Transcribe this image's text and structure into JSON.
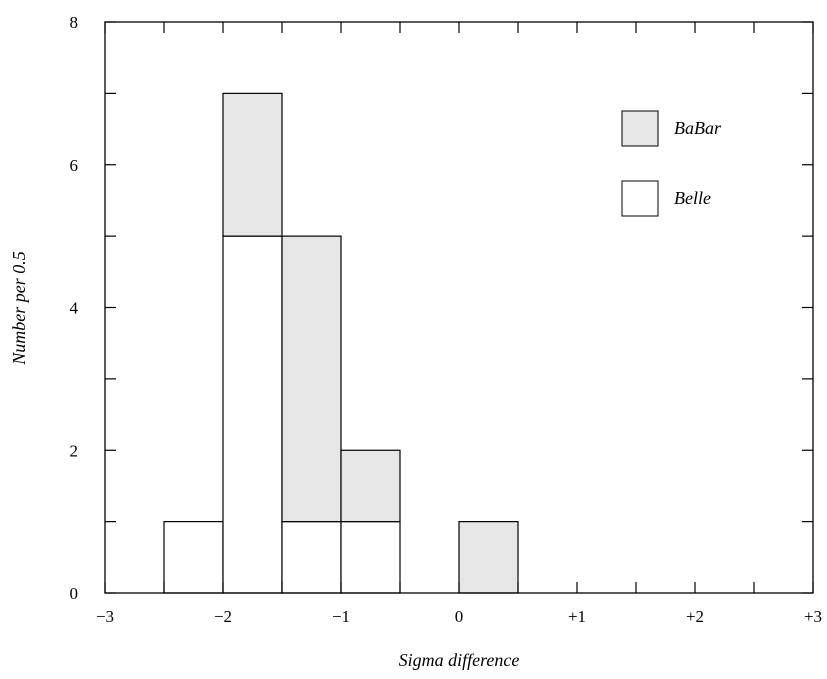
{
  "chart_data": {
    "type": "bar",
    "subtype": "stacked-histogram",
    "xlabel": "Sigma difference",
    "ylabel": "Number per 0.5",
    "xlim": [
      -3,
      3
    ],
    "ylim": [
      0,
      8
    ],
    "bin_width": 0.5,
    "x_ticks": [
      {
        "value": -3,
        "label": "−3"
      },
      {
        "value": -2,
        "label": "−2"
      },
      {
        "value": -1,
        "label": "−1"
      },
      {
        "value": 0,
        "label": "0"
      },
      {
        "value": 1,
        "label": "+1"
      },
      {
        "value": 2,
        "label": "+2"
      },
      {
        "value": 3,
        "label": "+3"
      }
    ],
    "y_ticks": [
      {
        "value": 0,
        "label": "0"
      },
      {
        "value": 2,
        "label": "2"
      },
      {
        "value": 4,
        "label": "4"
      },
      {
        "value": 6,
        "label": "6"
      },
      {
        "value": 8,
        "label": "8"
      }
    ],
    "bin_edges": [
      -2.5,
      -2.0,
      -1.5,
      -1.0,
      -0.5,
      0.0,
      0.5
    ],
    "series": [
      {
        "name": "Belle",
        "color": "#ffffff",
        "values": [
          1,
          5,
          1,
          1,
          0,
          0
        ]
      },
      {
        "name": "BaBar",
        "color": "#e6e6e6",
        "values": [
          0,
          2,
          4,
          1,
          0,
          1
        ]
      }
    ],
    "grid": false,
    "legend_position": "top-right"
  }
}
